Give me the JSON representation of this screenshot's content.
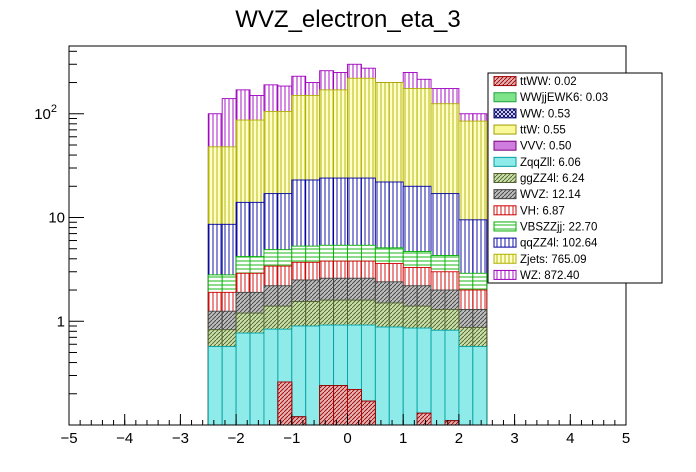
{
  "chart_data": {
    "type": "bar",
    "title": "WVZ_electron_eta_3",
    "xlabel": "",
    "ylabel": "",
    "xlim": [
      -5,
      5
    ],
    "ylim": [
      0.1,
      450
    ],
    "yscale": "log",
    "stacked": true,
    "grid": false,
    "legend_position": "top-right",
    "x_ticks": [
      "−5",
      "−4",
      "−3",
      "−2",
      "−1",
      "0",
      "1",
      "2",
      "3",
      "4",
      "5"
    ],
    "y_ticks": [
      {
        "value": 1,
        "label": "1"
      },
      {
        "value": 10,
        "label": "10"
      },
      {
        "value": 100,
        "label": "10",
        "sup": "2"
      }
    ],
    "bin_edges": [
      -2.5,
      -2.25,
      -2.0,
      -1.75,
      -1.5,
      -1.25,
      -1.0,
      -0.75,
      -0.5,
      -0.25,
      0.0,
      0.25,
      0.5,
      0.75,
      1.0,
      1.25,
      1.5,
      1.75,
      2.0,
      2.25,
      2.5
    ],
    "cumulative_tops": {
      "ttWW": [
        0,
        0,
        0,
        0,
        0,
        0.26,
        0.12,
        0,
        0.24,
        0.24,
        0.22,
        0.17,
        0,
        0,
        0,
        0.13,
        0,
        0.11,
        0,
        0
      ],
      "WWjjEWK6": [
        0,
        0,
        0,
        0,
        0,
        0.26,
        0.12,
        0,
        0.24,
        0.24,
        0.22,
        0.17,
        0,
        0,
        0,
        0.13,
        0,
        0.11,
        0,
        0
      ],
      "WW": [
        0,
        0,
        0,
        0,
        0,
        0.26,
        0.12,
        0,
        0.24,
        0.24,
        0.22,
        0.17,
        0,
        0,
        0,
        0.13,
        0,
        0.11,
        0,
        0
      ],
      "ttW": [
        0,
        0,
        0,
        0,
        0,
        0.18,
        0.11,
        0,
        0.14,
        0.13,
        0.11,
        0,
        0,
        0,
        0,
        0,
        0,
        0,
        0,
        0
      ],
      "VVV": [
        0,
        0,
        0,
        0,
        0,
        0.26,
        0.12,
        0,
        0.24,
        0.24,
        0.22,
        0.17,
        0,
        0,
        0,
        0.13,
        0,
        0.11,
        0,
        0
      ],
      "ZqqZll": [
        0.57,
        0.57,
        0.77,
        0.77,
        0.84,
        0.84,
        0.9,
        0.9,
        0.92,
        0.92,
        0.92,
        0.92,
        0.88,
        0.88,
        0.86,
        0.86,
        0.82,
        0.82,
        0.57,
        0.57
      ],
      "ggZZ4l": [
        0.83,
        0.83,
        1.2,
        1.2,
        1.4,
        1.4,
        1.55,
        1.55,
        1.6,
        1.6,
        1.6,
        1.6,
        1.5,
        1.5,
        1.4,
        1.4,
        1.3,
        1.3,
        0.87,
        0.87
      ],
      "WVZ": [
        1.25,
        1.25,
        1.9,
        1.9,
        2.2,
        2.2,
        2.5,
        2.5,
        2.6,
        2.6,
        2.6,
        2.6,
        2.4,
        2.4,
        2.2,
        2.2,
        2.0,
        2.0,
        1.3,
        1.3
      ],
      "VH": [
        1.9,
        1.9,
        2.9,
        2.9,
        3.4,
        3.4,
        3.7,
        3.7,
        3.8,
        3.8,
        3.8,
        3.8,
        3.6,
        3.6,
        3.3,
        3.3,
        3.0,
        3.0,
        2.0,
        2.0
      ],
      "VBSZZjj": [
        2.8,
        2.8,
        4.2,
        4.2,
        4.9,
        4.9,
        5.3,
        5.3,
        5.4,
        5.4,
        5.4,
        5.4,
        5.1,
        5.1,
        4.7,
        4.7,
        4.3,
        4.3,
        2.9,
        2.9
      ],
      "qqZZ4l": [
        8.6,
        8.6,
        14,
        14,
        17,
        17,
        23,
        23,
        24,
        24,
        24,
        24,
        22,
        22,
        20,
        20,
        17,
        17,
        9.5,
        9.5
      ],
      "Zjets": [
        48,
        48,
        87,
        87,
        105,
        105,
        150,
        150,
        170,
        170,
        220,
        220,
        200,
        200,
        175,
        175,
        125,
        125,
        85,
        85
      ],
      "WZ": [
        100,
        140,
        170,
        150,
        190,
        185,
        230,
        200,
        260,
        250,
        300,
        275,
        200,
        200,
        250,
        215,
        175,
        175,
        100,
        100
      ]
    },
    "series": [
      {
        "name": "ttWW",
        "legend": "ttWW: 0.02",
        "color": "#a00000",
        "hatch": "diag",
        "fill": "#e3b3b3"
      },
      {
        "name": "WWjjEWK6",
        "legend": "WWjjEWK6: 0.03",
        "color": "#20a040",
        "hatch": "none",
        "fill": "#7fe38a"
      },
      {
        "name": "WW",
        "legend": "WW: 0.53",
        "color": "#00006e",
        "hatch": "cross",
        "fill": "#ffffff"
      },
      {
        "name": "ttW",
        "legend": "ttW: 0.55",
        "color": "#a0a000",
        "hatch": "none",
        "fill": "#f9f99a"
      },
      {
        "name": "VVV",
        "legend": "VVV: 0.50",
        "color": "#7a007a",
        "hatch": "none",
        "fill": "#cf7ee0"
      },
      {
        "name": "ZqqZll",
        "legend": "ZqqZll: 6.06",
        "color": "#00a0a0",
        "hatch": "none",
        "fill": "#8feaea"
      },
      {
        "name": "ggZZ4l",
        "legend": "ggZZ4l: 6.24",
        "color": "#506030",
        "hatch": "diag",
        "fill": "#c8e0a8"
      },
      {
        "name": "WVZ",
        "legend": "WVZ: 12.14",
        "color": "#404040",
        "hatch": "diag",
        "fill": "#bdbdbd"
      },
      {
        "name": "VH",
        "legend": "VH: 6.87",
        "color": "#d00000",
        "hatch": "vert",
        "fill": "#ffffff"
      },
      {
        "name": "VBSZZjj",
        "legend": "VBSZZjj: 22.70",
        "color": "#00b000",
        "hatch": "horiz",
        "fill": "#ffffff"
      },
      {
        "name": "qqZZ4l",
        "legend": "qqZZ4l: 102.64",
        "color": "#0000a0",
        "hatch": "vert",
        "fill": "#ffffff"
      },
      {
        "name": "Zjets",
        "legend": "Zjets: 765.09",
        "color": "#b0b000",
        "hatch": "vert",
        "fill": "#ffffc8"
      },
      {
        "name": "WZ",
        "legend": "WZ: 872.40",
        "color": "#a000c0",
        "hatch": "vert",
        "fill": "#ffffff"
      }
    ],
    "draw_order": [
      "WZ",
      "Zjets",
      "qqZZ4l",
      "VBSZZjj",
      "VH",
      "WVZ",
      "ggZZ4l",
      "ZqqZll",
      "VVV",
      "ttW",
      "WW",
      "WWjjEWK6",
      "ttWW"
    ]
  }
}
